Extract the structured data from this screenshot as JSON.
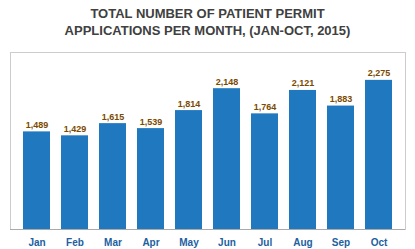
{
  "chart_data": {
    "type": "bar",
    "title": "TOTAL NUMBER OF PATIENT PERMIT\nAPPLICATIONS PER MONTH, (JAN-OCT, 2015)",
    "categories": [
      "Jan",
      "Feb",
      "Mar",
      "Apr",
      "May",
      "Jun",
      "Jul",
      "Aug",
      "Sep",
      "Oct"
    ],
    "values": [
      1489,
      1429,
      1615,
      1539,
      1814,
      2148,
      1764,
      2121,
      1883,
      2275
    ],
    "value_labels": [
      "1,489",
      "1,429",
      "1,615",
      "1,539",
      "1,814",
      "2,148",
      "1,764",
      "2,121",
      "1,883",
      "2,275"
    ],
    "color": "#2079BE",
    "ylim": [
      0,
      2700
    ],
    "data_labels": true,
    "tick_labels": "x",
    "grid": false
  }
}
